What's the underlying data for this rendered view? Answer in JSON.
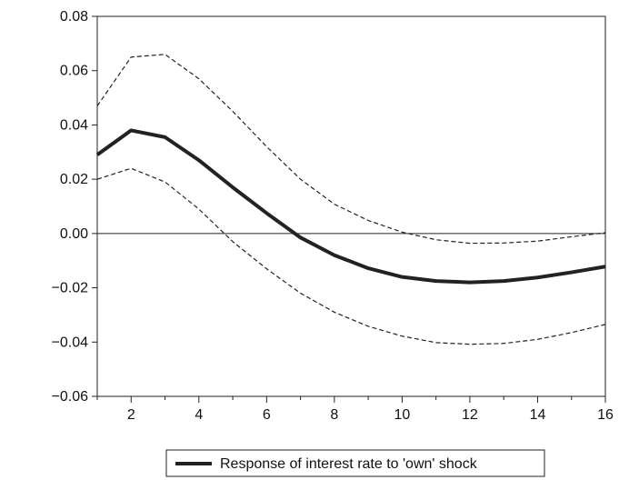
{
  "chart_data": {
    "type": "line",
    "title": "",
    "xlabel": "",
    "ylabel": "",
    "x": [
      1,
      2,
      3,
      4,
      5,
      6,
      7,
      8,
      9,
      10,
      11,
      12,
      13,
      14,
      15,
      16
    ],
    "xlim": [
      1,
      16
    ],
    "ylim": [
      -0.06,
      0.08
    ],
    "x_ticks": [
      2,
      4,
      6,
      8,
      10,
      12,
      14,
      16
    ],
    "x_tick_labels": [
      "2",
      "4",
      "6",
      "8",
      "10",
      "12",
      "14",
      "16"
    ],
    "y_ticks": [
      0.08,
      0.06,
      0.04,
      0.02,
      0.0,
      -0.02,
      -0.04,
      -0.06
    ],
    "y_tick_labels": [
      "0.08",
      "0.06",
      "0.04",
      "0.02",
      "0.00",
      "−0.02",
      "−0.04",
      "−0.06"
    ],
    "zero_line": true,
    "grid": false,
    "legend_position": "bottom-center",
    "series": [
      {
        "name": "Response of interest rate to 'own' shock",
        "style": "solid-thick",
        "color": "#222222",
        "values": [
          0.029,
          0.038,
          0.0355,
          0.027,
          0.017,
          0.0075,
          -0.0015,
          -0.008,
          -0.0128,
          -0.016,
          -0.0175,
          -0.018,
          -0.0175,
          -0.0162,
          -0.0143,
          -0.0122
        ]
      },
      {
        "style": "dashed",
        "color": "#222222",
        "values": [
          0.047,
          0.065,
          0.066,
          0.057,
          0.045,
          0.032,
          0.02,
          0.0108,
          0.0048,
          0.0005,
          -0.0023,
          -0.0036,
          -0.0035,
          -0.0028,
          -0.0012,
          0.0003
        ]
      },
      {
        "style": "dashed",
        "color": "#222222",
        "values": [
          0.02,
          0.024,
          0.019,
          0.009,
          -0.003,
          -0.013,
          -0.022,
          -0.029,
          -0.0342,
          -0.0378,
          -0.0402,
          -0.0408,
          -0.0405,
          -0.039,
          -0.0365,
          -0.0335
        ]
      }
    ]
  }
}
